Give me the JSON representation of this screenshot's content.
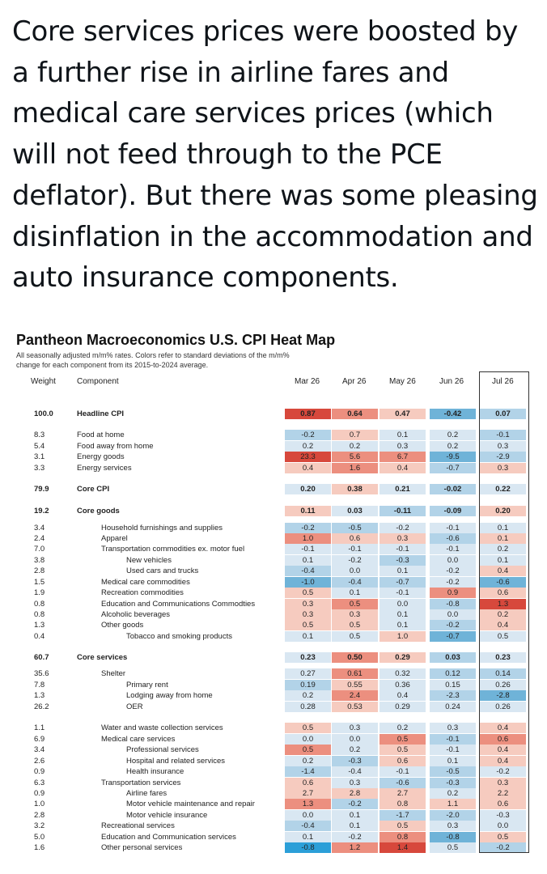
{
  "tweet_text": "Core services prices were boosted by a further rise in airline fares and medical care services prices (which will not feed through to the PCE deflator). But there was some pleasing disinflation in the accommodation and auto insurance components.",
  "heatmap": {
    "title": "Pantheon Macroeconomics U.S. CPI Heat Map",
    "subtitle": "All seasonally adjusted m/m% rates. Colors refer to standard deviations of the m/m% change for each component from its 2015-to-2024 average.",
    "headers": {
      "weight": "Weight",
      "component": "Component",
      "months": [
        "Mar 26",
        "Apr 26",
        "May 26",
        "Jun 26",
        "Jul 26"
      ]
    },
    "colors": {
      "strong_red": "#d7483c",
      "red": "#ec8f7f",
      "light_red": "#f6cbbf",
      "pale": "#d9e7f2",
      "light_blue": "#b2d3e8",
      "blue": "#6fb3d8",
      "strong_blue": "#2b9fd8"
    },
    "rows": [
      {
        "weight": "100.0",
        "label": "Headline CPI",
        "indent": 0,
        "bold": true,
        "values": [
          "0.87",
          "0.64",
          "0.47",
          "-0.42",
          "0.07"
        ]
      },
      {
        "weight": "8.3",
        "label": "Food at home",
        "indent": 0,
        "values": [
          "-0.2",
          "0.7",
          "0.1",
          "0.2",
          "-0.1"
        ]
      },
      {
        "weight": "5.4",
        "label": "Food away from  home",
        "indent": 0,
        "values": [
          "0.2",
          "0.2",
          "0.3",
          "0.2",
          "0.3"
        ]
      },
      {
        "weight": "3.1",
        "label": "Energy goods",
        "indent": 0,
        "values": [
          "23.3",
          "5.6",
          "6.7",
          "-9.5",
          "-2.9"
        ]
      },
      {
        "weight": "3.3",
        "label": "Energy services",
        "indent": 0,
        "values": [
          "0.4",
          "1.6",
          "0.4",
          "-0.7",
          "0.3"
        ]
      },
      {
        "weight": "79.9",
        "label": "Core CPI",
        "indent": 0,
        "bold": true,
        "values": [
          "0.20",
          "0.38",
          "0.21",
          "-0.02",
          "0.22"
        ]
      },
      {
        "weight": "19.2",
        "label": "Core goods",
        "indent": 0,
        "bold": true,
        "values": [
          "0.11",
          "0.03",
          "-0.11",
          "-0.09",
          "0.20"
        ]
      },
      {
        "weight": "3.4",
        "label": "Household furnishings and supplies",
        "indent": 1,
        "values": [
          "-0.2",
          "-0.5",
          "-0.2",
          "-0.1",
          "0.1"
        ]
      },
      {
        "weight": "2.4",
        "label": "Apparel",
        "indent": 1,
        "values": [
          "1.0",
          "0.6",
          "0.3",
          "-0.6",
          "0.1"
        ]
      },
      {
        "weight": "7.0",
        "label": "Transportation commodities ex. motor fuel",
        "indent": 1,
        "values": [
          "-0.1",
          "-0.1",
          "-0.1",
          "-0.1",
          "0.2"
        ]
      },
      {
        "weight": "3.8",
        "label": "New vehicles",
        "indent": 2,
        "values": [
          "0.1",
          "-0.2",
          "-0.3",
          "0.0",
          "0.1"
        ]
      },
      {
        "weight": "2.8",
        "label": "Used cars and trucks",
        "indent": 2,
        "values": [
          "-0.4",
          "0.0",
          "0.1",
          "-0.2",
          "0.4"
        ]
      },
      {
        "weight": "1.5",
        "label": "Medical care commodities",
        "indent": 1,
        "values": [
          "-1.0",
          "-0.4",
          "-0.7",
          "-0.2",
          "-0.6"
        ]
      },
      {
        "weight": "1.9",
        "label": "Recreation commodities",
        "indent": 1,
        "values": [
          "0.5",
          "0.1",
          "-0.1",
          "0.9",
          "0.6"
        ]
      },
      {
        "weight": "0.8",
        "label": "Education and Communications Commodties",
        "indent": 1,
        "values": [
          "0.3",
          "0.5",
          "0.0",
          "-0.8",
          "1.3"
        ]
      },
      {
        "weight": "0.8",
        "label": "Alcoholic beverages",
        "indent": 1,
        "values": [
          "0.3",
          "0.3",
          "0.1",
          "0.0",
          "0.2"
        ]
      },
      {
        "weight": "1.3",
        "label": "Other goods",
        "indent": 1,
        "values": [
          "0.5",
          "0.5",
          "0.1",
          "-0.2",
          "0.4"
        ]
      },
      {
        "weight": "0.4",
        "label": "Tobacco and smoking products",
        "indent": 2,
        "values": [
          "0.1",
          "0.5",
          "1.0",
          "-0.7",
          "0.5"
        ]
      },
      {
        "weight": "60.7",
        "label": "Core services",
        "indent": 0,
        "bold": true,
        "values": [
          "0.23",
          "0.50",
          "0.29",
          "0.03",
          "0.23"
        ]
      },
      {
        "weight": "35.6",
        "label": "Shelter",
        "indent": 1,
        "values": [
          "0.27",
          "0.61",
          "0.32",
          "0.12",
          "0.14"
        ]
      },
      {
        "weight": "7.8",
        "label": "Primary rent",
        "indent": 2,
        "values": [
          "0.19",
          "0.55",
          "0.36",
          "0.15",
          "0.26"
        ]
      },
      {
        "weight": "1.3",
        "label": "Lodging away from home",
        "indent": 2,
        "values": [
          "0.2",
          "2.4",
          "0.4",
          "-2.3",
          "-2.8"
        ]
      },
      {
        "weight": "26.2",
        "label": "OER",
        "indent": 2,
        "values": [
          "0.28",
          "0.53",
          "0.29",
          "0.24",
          "0.26"
        ]
      },
      {
        "weight": "1.1",
        "label": "Water and waste collection services",
        "indent": 1,
        "values": [
          "0.5",
          "0.3",
          "0.2",
          "0.3",
          "0.4"
        ]
      },
      {
        "weight": "6.9",
        "label": "Medical care services",
        "indent": 1,
        "values": [
          "0.0",
          "0.0",
          "0.5",
          "-0.1",
          "0.6"
        ]
      },
      {
        "weight": "3.4",
        "label": "Professional services",
        "indent": 2,
        "values": [
          "0.5",
          "0.2",
          "0.5",
          "-0.1",
          "0.4"
        ]
      },
      {
        "weight": "2.6",
        "label": "Hospital and related services",
        "indent": 2,
        "values": [
          "0.2",
          "-0.3",
          "0.6",
          "0.1",
          "0.4"
        ]
      },
      {
        "weight": "0.9",
        "label": "Health insurance",
        "indent": 2,
        "values": [
          "-1.4",
          "-0.4",
          "-0.1",
          "-0.5",
          "-0.2"
        ]
      },
      {
        "weight": "6.3",
        "label": "Transportation services",
        "indent": 1,
        "values": [
          "0.6",
          "0.3",
          "-0.6",
          "-0.3",
          "0.3"
        ]
      },
      {
        "weight": "0.9",
        "label": "Airline fares",
        "indent": 2,
        "values": [
          "2.7",
          "2.8",
          "2.7",
          "0.2",
          "2.2"
        ]
      },
      {
        "weight": "1.0",
        "label": "Motor vehicle maintenance and repair",
        "indent": 2,
        "values": [
          "1.3",
          "-0.2",
          "0.8",
          "1.1",
          "0.6"
        ]
      },
      {
        "weight": "2.8",
        "label": "Motor vehicle insurance",
        "indent": 2,
        "values": [
          "0.0",
          "0.1",
          "-1.7",
          "-2.0",
          "-0.3"
        ]
      },
      {
        "weight": "3.2",
        "label": "Recreational services",
        "indent": 1,
        "values": [
          "-0.4",
          "0.1",
          "0.5",
          "0.3",
          "0.0"
        ]
      },
      {
        "weight": "5.0",
        "label": "Education and Communication services",
        "indent": 1,
        "values": [
          "0.1",
          "-0.2",
          "0.8",
          "-0.8",
          "0.5"
        ]
      },
      {
        "weight": "1.6",
        "label": "Other personal services",
        "indent": 1,
        "values": [
          "-0.8",
          "1.2",
          "1.4",
          "0.5",
          "-0.2"
        ]
      }
    ],
    "cell_shades": [
      [
        "strong_red",
        "red",
        "light_red",
        "blue",
        "light_blue"
      ],
      [
        "light_blue",
        "light_red",
        "pale",
        "pale",
        "light_blue"
      ],
      [
        "pale",
        "pale",
        "pale",
        "pale",
        "pale"
      ],
      [
        "strong_red",
        "red",
        "red",
        "blue",
        "light_blue"
      ],
      [
        "light_red",
        "red",
        "light_red",
        "light_blue",
        "light_red"
      ],
      [
        "pale",
        "light_red",
        "pale",
        "light_blue",
        "pale"
      ],
      [
        "light_red",
        "pale",
        "light_blue",
        "light_blue",
        "light_red"
      ],
      [
        "light_blue",
        "light_blue",
        "pale",
        "pale",
        "pale"
      ],
      [
        "red",
        "light_red",
        "light_red",
        "light_blue",
        "light_red"
      ],
      [
        "pale",
        "pale",
        "pale",
        "pale",
        "pale"
      ],
      [
        "pale",
        "pale",
        "light_blue",
        "pale",
        "pale"
      ],
      [
        "light_blue",
        "pale",
        "pale",
        "pale",
        "light_red"
      ],
      [
        "blue",
        "light_blue",
        "light_blue",
        "pale",
        "blue"
      ],
      [
        "light_red",
        "pale",
        "pale",
        "red",
        "light_red"
      ],
      [
        "light_red",
        "red",
        "pale",
        "light_blue",
        "strong_red"
      ],
      [
        "light_red",
        "light_red",
        "pale",
        "pale",
        "light_red"
      ],
      [
        "light_red",
        "light_red",
        "pale",
        "light_blue",
        "light_red"
      ],
      [
        "pale",
        "pale",
        "light_red",
        "blue",
        "pale"
      ],
      [
        "pale",
        "red",
        "light_red",
        "light_blue",
        "pale"
      ],
      [
        "pale",
        "red",
        "pale",
        "light_blue",
        "light_blue"
      ],
      [
        "light_blue",
        "light_red",
        "pale",
        "pale",
        "pale"
      ],
      [
        "pale",
        "red",
        "pale",
        "light_blue",
        "blue"
      ],
      [
        "pale",
        "light_red",
        "pale",
        "pale",
        "pale"
      ],
      [
        "light_red",
        "pale",
        "pale",
        "pale",
        "light_red"
      ],
      [
        "pale",
        "pale",
        "red",
        "light_blue",
        "red"
      ],
      [
        "red",
        "pale",
        "light_red",
        "pale",
        "light_red"
      ],
      [
        "pale",
        "light_blue",
        "light_red",
        "pale",
        "light_red"
      ],
      [
        "light_blue",
        "pale",
        "pale",
        "light_blue",
        "pale"
      ],
      [
        "light_red",
        "pale",
        "light_blue",
        "light_blue",
        "light_red"
      ],
      [
        "light_red",
        "light_red",
        "light_red",
        "pale",
        "light_red"
      ],
      [
        "red",
        "light_blue",
        "light_red",
        "light_red",
        "light_red"
      ],
      [
        "pale",
        "pale",
        "light_blue",
        "light_blue",
        "pale"
      ],
      [
        "light_blue",
        "pale",
        "light_red",
        "pale",
        "pale"
      ],
      [
        "pale",
        "pale",
        "red",
        "blue",
        "light_red"
      ],
      [
        "strong_blue",
        "red",
        "strong_red",
        "pale",
        "light_blue"
      ]
    ]
  }
}
